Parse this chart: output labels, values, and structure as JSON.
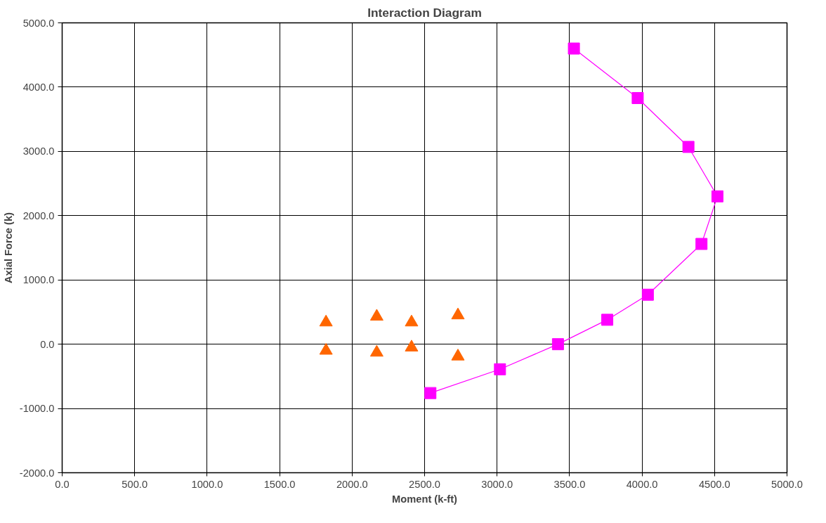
{
  "chart_data": {
    "type": "scatter",
    "title": "Interaction Diagram",
    "xlabel": "Moment (k-ft)",
    "ylabel": "Axial Force (k)",
    "xlim": [
      0,
      5000
    ],
    "ylim": [
      -2000,
      5000
    ],
    "xticks": [
      {
        "value": 0,
        "label": "0.0"
      },
      {
        "value": 500,
        "label": "500.0"
      },
      {
        "value": 1000,
        "label": "1000.0"
      },
      {
        "value": 1500,
        "label": "1500.0"
      },
      {
        "value": 2000,
        "label": "2000.0"
      },
      {
        "value": 2500,
        "label": "2500.0"
      },
      {
        "value": 3000,
        "label": "3000.0"
      },
      {
        "value": 3500,
        "label": "3500.0"
      },
      {
        "value": 4000,
        "label": "4000.0"
      },
      {
        "value": 4500,
        "label": "4500.0"
      },
      {
        "value": 5000,
        "label": "5000.0"
      }
    ],
    "yticks": [
      {
        "value": -2000,
        "label": "-2000.0"
      },
      {
        "value": -1000,
        "label": "-1000.0"
      },
      {
        "value": 0,
        "label": "0.0"
      },
      {
        "value": 1000,
        "label": "1000.0"
      },
      {
        "value": 2000,
        "label": "2000.0"
      },
      {
        "value": 3000,
        "label": "3000.0"
      },
      {
        "value": 4000,
        "label": "4000.0"
      },
      {
        "value": 5000,
        "label": "5000.0"
      }
    ],
    "grid": true,
    "series": [
      {
        "type": "line",
        "marker": "square",
        "color": "#ff00ff",
        "x": [
          3530,
          3970,
          4320,
          4520,
          4410,
          4040,
          3760,
          3420,
          3020,
          2540
        ],
        "values": [
          4600,
          3830,
          3070,
          2300,
          1560,
          770,
          380,
          0,
          -390,
          -760
        ]
      },
      {
        "marker": "triangle",
        "color": "#ff6600",
        "x": [
          1820,
          1820,
          2170,
          2170,
          2410,
          2410,
          2730,
          2730
        ],
        "values": [
          340,
          -100,
          430,
          -130,
          340,
          -50,
          450,
          -190
        ]
      }
    ]
  }
}
